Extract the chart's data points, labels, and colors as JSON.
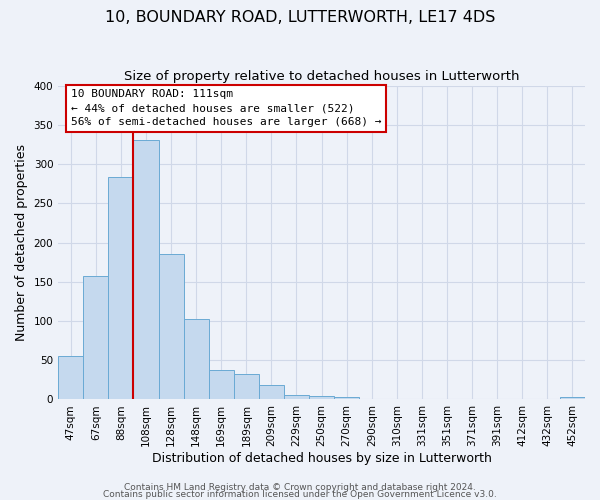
{
  "title": "10, BOUNDARY ROAD, LUTTERWORTH, LE17 4DS",
  "subtitle": "Size of property relative to detached houses in Lutterworth",
  "xlabel": "Distribution of detached houses by size in Lutterworth",
  "ylabel": "Number of detached properties",
  "bar_labels": [
    "47sqm",
    "67sqm",
    "88sqm",
    "108sqm",
    "128sqm",
    "148sqm",
    "169sqm",
    "189sqm",
    "209sqm",
    "229sqm",
    "250sqm",
    "270sqm",
    "290sqm",
    "310sqm",
    "331sqm",
    "351sqm",
    "371sqm",
    "391sqm",
    "412sqm",
    "432sqm",
    "452sqm"
  ],
  "bar_values": [
    55,
    157,
    284,
    330,
    185,
    103,
    37,
    32,
    18,
    6,
    4,
    3,
    0,
    0,
    0,
    0,
    0,
    0,
    0,
    0,
    3
  ],
  "bar_color": "#c5d9ee",
  "bar_edge_color": "#6aaad4",
  "vline_color": "#cc0000",
  "annotation_title": "10 BOUNDARY ROAD: 111sqm",
  "annotation_line1": "← 44% of detached houses are smaller (522)",
  "annotation_line2": "56% of semi-detached houses are larger (668) →",
  "annotation_box_color": "#ffffff",
  "annotation_box_edge": "#cc0000",
  "ylim": [
    0,
    400
  ],
  "yticks": [
    0,
    50,
    100,
    150,
    200,
    250,
    300,
    350,
    400
  ],
  "footer_line1": "Contains HM Land Registry data © Crown copyright and database right 2024.",
  "footer_line2": "Contains public sector information licensed under the Open Government Licence v3.0.",
  "background_color": "#eef2f9",
  "grid_color": "#d0d8e8",
  "title_fontsize": 11.5,
  "subtitle_fontsize": 9.5,
  "axis_label_fontsize": 9,
  "tick_fontsize": 7.5,
  "footer_fontsize": 6.5
}
